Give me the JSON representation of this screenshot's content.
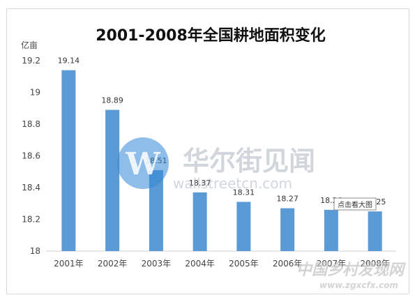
{
  "chart_data": {
    "type": "bar",
    "title": "2001-2008年全国耕地面积变化",
    "unit_label": "亿亩",
    "categories": [
      "2001年",
      "2002年",
      "2003年",
      "2004年",
      "2005年",
      "2006年",
      "2007年",
      "2008年"
    ],
    "values": [
      19.14,
      18.89,
      18.51,
      18.37,
      18.31,
      18.27,
      18.26,
      18.25
    ],
    "data_labels": [
      "19.14",
      "18.89",
      "18.51",
      "18.37",
      "18.31",
      "18.27",
      "18.26",
      "18.25"
    ],
    "ylim": [
      18,
      19.2
    ],
    "yticks": [
      18,
      18.2,
      18.4,
      18.6,
      18.8,
      19,
      19.2
    ],
    "ytick_labels": [
      "18",
      "18.2",
      "18.4",
      "18.6",
      "18.8",
      "19",
      "19.2"
    ],
    "xlabel": "",
    "ylabel": "亿亩",
    "grid": false,
    "bar_color": "#5b9bd5"
  },
  "watermark": {
    "brand": "华尔街见闻",
    "logo_letter": "W",
    "url": "wallstreetcn.com",
    "logo_color": "#2f86d6"
  },
  "tooltip": {
    "text": "点击看大图"
  },
  "corner_watermark": {
    "text": "中国乡村发现网",
    "url": "www.zgxcfx.com"
  }
}
